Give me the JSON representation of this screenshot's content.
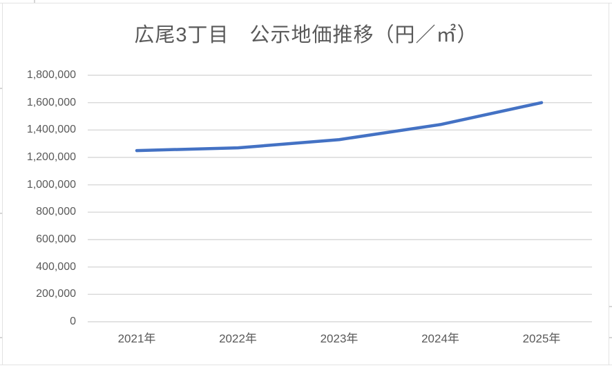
{
  "chart_data": {
    "type": "line",
    "title": "広尾3丁目　公示地価推移（円／㎡）",
    "categories": [
      "2021年",
      "2022年",
      "2023年",
      "2024年",
      "2025年"
    ],
    "series": [
      {
        "name": "公示地価",
        "values": [
          1250000,
          1270000,
          1330000,
          1440000,
          1600000
        ]
      }
    ],
    "xlabel": "",
    "ylabel": "",
    "ylim": [
      0,
      1800000
    ],
    "ytick_step": 200000,
    "ytick_labels": [
      "0",
      "200,000",
      "400,000",
      "600,000",
      "800,000",
      "1,000,000",
      "1,200,000",
      "1,400,000",
      "1,600,000",
      "1,800,000"
    ],
    "grid": "horizontal",
    "legend": "none",
    "colors": {
      "line": "#4472c4",
      "gridline": "#d9d9d9",
      "text": "#595959",
      "background": "#ffffff",
      "frame": "#e2e2e2"
    }
  }
}
